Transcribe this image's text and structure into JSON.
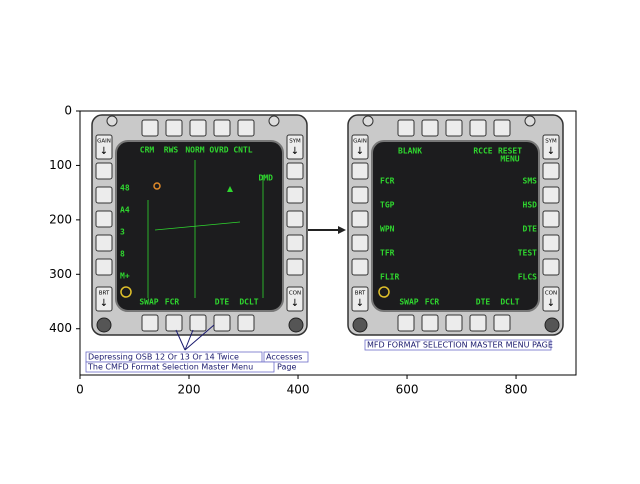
{
  "axes": {
    "xlim": [
      0,
      910
    ],
    "ylim": [
      485,
      0
    ],
    "xticks": [
      0,
      200,
      400,
      600,
      800
    ],
    "yticks": [
      0,
      100,
      200,
      300,
      400
    ]
  },
  "left_mfd": {
    "corner_labels": [
      "GAIN",
      "SYM",
      "BRT",
      "CON"
    ],
    "top_labels": [
      "CRM",
      "RWS",
      "NORM",
      "OVRD",
      "CNTL"
    ],
    "left_labels": [
      "48",
      "A4",
      "3",
      "8",
      "M+"
    ],
    "right_labels": [
      "DMD"
    ],
    "bottom_labels": [
      "SWAP",
      "FCR",
      "DTE",
      "DCLT"
    ]
  },
  "right_mfd": {
    "corner_labels": [
      "GAIN",
      "SYM",
      "BRT",
      "CON"
    ],
    "top_labels": [
      "BLANK",
      "RCCE",
      "RESET",
      "MENU"
    ],
    "left_labels": [
      "FCR",
      "TGP",
      "WPN",
      "TFR",
      "FLIR"
    ],
    "right_labels": [
      "SMS",
      "HSD",
      "DTE",
      "TEST",
      "FLCS"
    ],
    "bottom_labels": [
      "SWAP",
      "FCR",
      "DTE",
      "DCLT"
    ]
  },
  "captions": {
    "line1": "Depressing OSB 12 Or 13 Or 14 Twice",
    "line1_end": "Accesses",
    "line2": "The CMFD Format Selection Master Menu",
    "line2_end": "Page",
    "right": "MFD FORMAT SELECTION MASTER MENU PAGE"
  }
}
